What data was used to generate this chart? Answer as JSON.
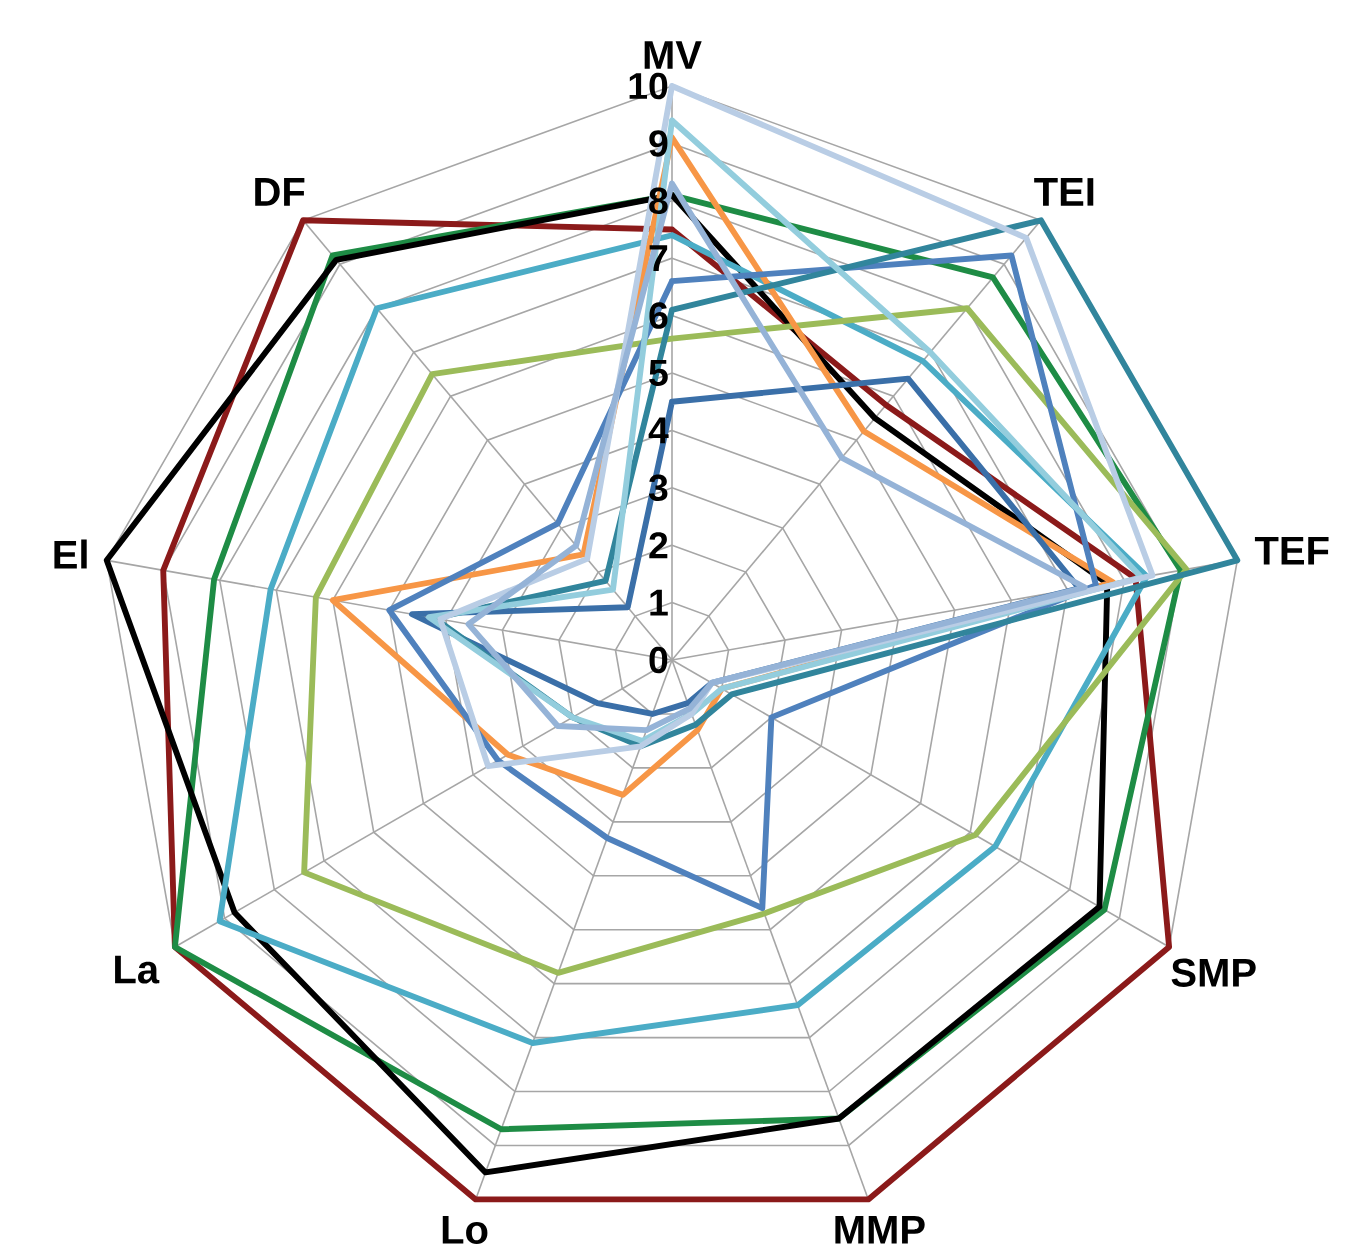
{
  "chart_data": {
    "type": "radar",
    "categories": [
      "MV",
      "TEI",
      "TEF",
      "SMP",
      "MMP",
      "Lo",
      "La",
      "El",
      "DF"
    ],
    "ylim": [
      0,
      10
    ],
    "yticks": [
      0,
      1,
      2,
      3,
      4,
      5,
      6,
      7,
      8,
      9,
      10
    ],
    "grid": true,
    "series": [
      {
        "color": "#8b1a1a",
        "values": [
          7.5,
          5.8,
          8.2,
          10,
          10,
          10,
          10,
          9,
          10
        ]
      },
      {
        "color": "#1e8c45",
        "values": [
          8.1,
          8.7,
          9,
          8.7,
          8.5,
          8.7,
          10,
          8.1,
          9.2
        ]
      },
      {
        "color": "#000000",
        "values": [
          8.1,
          5.5,
          7.7,
          8.6,
          8.5,
          9.5,
          8.8,
          10,
          9.1
        ]
      },
      {
        "color": "#4bacc6",
        "values": [
          7.4,
          6.8,
          8.4,
          6.5,
          6.4,
          7.1,
          9.1,
          7.1,
          8
        ]
      },
      {
        "color": "#9bbb59",
        "values": [
          5.6,
          8,
          9.1,
          6.1,
          4.7,
          5.8,
          7.4,
          6.3,
          6.5
        ]
      },
      {
        "color": "#f79646",
        "values": [
          9.1,
          5.2,
          7.8,
          1,
          1.3,
          2.5,
          3.3,
          6,
          2.4
        ]
      },
      {
        "color": "#3a6fa8",
        "values": [
          4.5,
          6.4,
          7.2,
          0.8,
          0.8,
          1,
          1.5,
          4.6,
          1.2
        ]
      },
      {
        "color": "#4f81bd",
        "values": [
          6.6,
          9.2,
          7.5,
          2,
          4.6,
          3.3,
          3.5,
          5,
          3.1
        ]
      },
      {
        "color": "#31859c",
        "values": [
          6.1,
          10,
          10,
          1.2,
          1.2,
          1.6,
          2,
          4.2,
          1.8
        ]
      },
      {
        "color": "#93cddd",
        "values": [
          9.4,
          7,
          8.3,
          1,
          1,
          1.5,
          2,
          4.3,
          1.6
        ]
      },
      {
        "color": "#b9cde5",
        "values": [
          10,
          9.6,
          8.5,
          0.8,
          1,
          1.6,
          3.7,
          4.1,
          2.3
        ]
      },
      {
        "color": "#95b3d7",
        "values": [
          8.3,
          4.6,
          7.3,
          0.8,
          0.9,
          1.3,
          2.3,
          3.6,
          2.6
        ]
      }
    ]
  }
}
